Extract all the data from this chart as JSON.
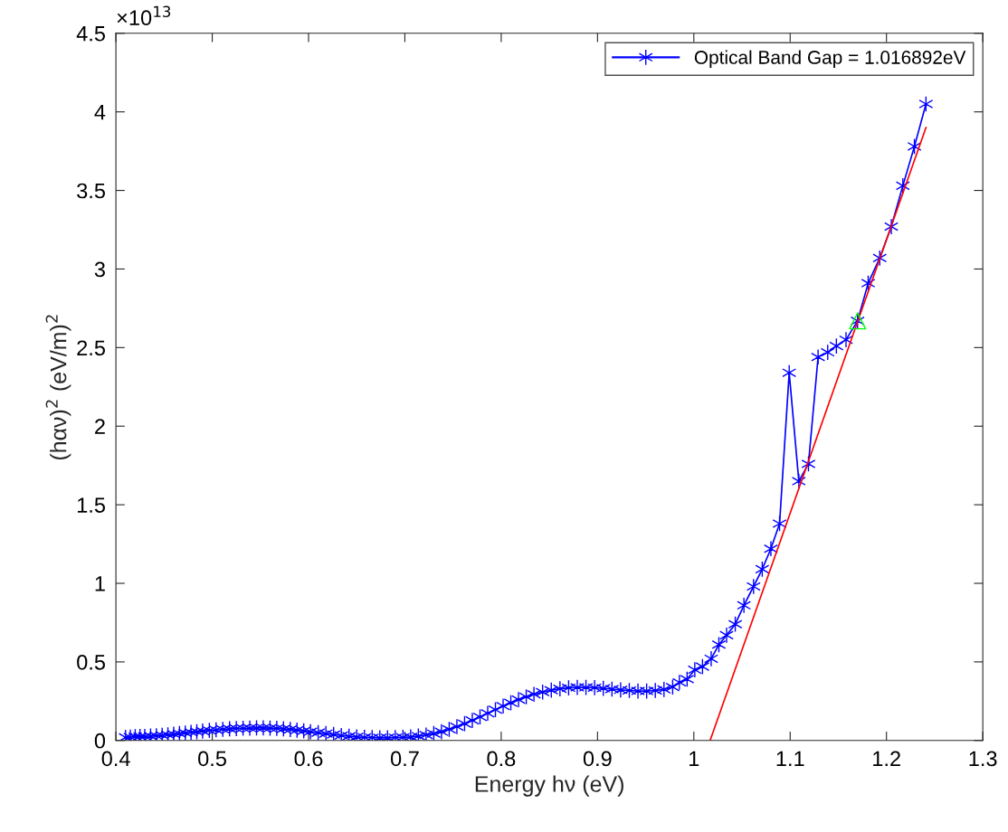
{
  "chart_data": {
    "type": "line",
    "xlabel": "Energy hν (eV)",
    "ylabel": "(hαν)$^{2}$ (eV/m)$^{2}$",
    "annotations": [
      "×10$^{13}$"
    ],
    "xlim": [
      0.4,
      1.3
    ],
    "xticks": [
      0.4,
      0.5,
      0.6,
      0.7,
      0.8,
      0.9,
      1,
      1.1,
      1.2,
      1.3
    ],
    "ylim": [
      0,
      4.5
    ],
    "yticks": [
      0,
      0.5,
      1,
      1.5,
      2,
      2.5,
      3,
      3.5,
      4,
      4.5
    ],
    "grid": false,
    "legend": "top right",
    "series": [
      {
        "name": "Optical Band Gap = 1.016892eV",
        "color": "#0000ff",
        "marker": "cross",
        "line_style": "solid",
        "x": [
          0.41,
          0.415,
          0.42,
          0.425,
          0.43,
          0.436,
          0.442,
          0.448,
          0.454,
          0.46,
          0.466,
          0.472,
          0.478,
          0.484,
          0.49,
          0.497,
          0.504,
          0.511,
          0.518,
          0.525,
          0.532,
          0.539,
          0.546,
          0.553,
          0.56,
          0.567,
          0.574,
          0.581,
          0.588,
          0.595,
          0.602,
          0.61,
          0.618,
          0.626,
          0.634,
          0.642,
          0.65,
          0.658,
          0.666,
          0.674,
          0.682,
          0.69,
          0.698,
          0.706,
          0.714,
          0.722,
          0.73,
          0.738,
          0.746,
          0.754,
          0.762,
          0.77,
          0.778,
          0.786,
          0.794,
          0.802,
          0.81,
          0.818,
          0.826,
          0.834,
          0.843,
          0.852,
          0.861,
          0.87,
          0.879,
          0.888,
          0.897,
          0.906,
          0.915,
          0.924,
          0.933,
          0.942,
          0.951,
          0.96,
          0.969,
          0.978,
          0.985,
          0.993,
          1.001,
          1.009,
          1.018,
          1.026,
          1.034,
          1.043,
          1.052,
          1.062,
          1.071,
          1.08,
          1.089,
          1.099,
          1.109,
          1.119,
          1.129,
          1.139,
          1.148,
          1.158,
          1.17,
          1.181,
          1.193,
          1.205,
          1.217,
          1.229,
          1.241
        ],
        "values": [
          0.02,
          0.022,
          0.024,
          0.025,
          0.026,
          0.028,
          0.03,
          0.033,
          0.036,
          0.04,
          0.044,
          0.048,
          0.052,
          0.056,
          0.06,
          0.064,
          0.068,
          0.071,
          0.074,
          0.076,
          0.078,
          0.079,
          0.08,
          0.08,
          0.079,
          0.077,
          0.074,
          0.07,
          0.066,
          0.061,
          0.056,
          0.05,
          0.044,
          0.038,
          0.032,
          0.027,
          0.023,
          0.02,
          0.018,
          0.017,
          0.017,
          0.018,
          0.02,
          0.023,
          0.028,
          0.035,
          0.044,
          0.056,
          0.071,
          0.088,
          0.107,
          0.128,
          0.15,
          0.173,
          0.196,
          0.219,
          0.24,
          0.26,
          0.278,
          0.294,
          0.308,
          0.32,
          0.329,
          0.335,
          0.338,
          0.338,
          0.336,
          0.332,
          0.327,
          0.322,
          0.318,
          0.315,
          0.315,
          0.318,
          0.325,
          0.34,
          0.37,
          0.39,
          0.45,
          0.47,
          0.52,
          0.61,
          0.67,
          0.74,
          0.86,
          0.98,
          1.09,
          1.22,
          1.38,
          2.34,
          1.65,
          1.76,
          2.44,
          2.47,
          2.51,
          2.55,
          2.67,
          2.91,
          3.07,
          3.27,
          3.53,
          3.78,
          4.05
        ]
      },
      {
        "color": "#ff0000",
        "marker": "none",
        "line_style": "solid",
        "x": [
          1.0169,
          1.241
        ],
        "values": [
          0,
          3.9
        ]
      },
      {
        "type": "scatter",
        "color": "#00ff00",
        "marker": "triangle",
        "x": [
          1.17
        ],
        "values": [
          2.67
        ]
      }
    ]
  }
}
